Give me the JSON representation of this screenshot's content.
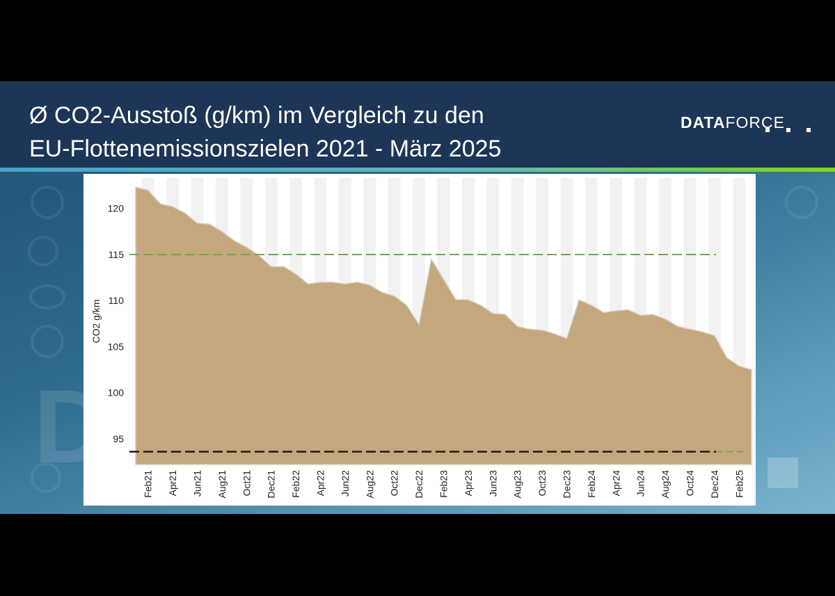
{
  "header": {
    "title_line1": "Ø CO2-Ausstoß (g/km) im Vergleich zu den",
    "title_line2": "EU-Flottenemissionszielen 2021 - März 2025",
    "logo_bold": "DATA",
    "logo_light": "FORCE"
  },
  "colors": {
    "header_bg": "#1d3557",
    "area_fill": "#c4a77d",
    "target_2021": "#6aad4d",
    "target_2025": "#1a1a1a",
    "column_band": "#f2f2f2"
  },
  "chart_data": {
    "type": "area",
    "title": "",
    "xlabel": "",
    "ylabel": "CO2 g/km",
    "ylim": [
      92.2,
      123.3
    ],
    "y_ticks": [
      95,
      100,
      105,
      110,
      115,
      120
    ],
    "x_tick_labels": [
      "Feb21",
      "Apr21",
      "Jun21",
      "Aug21",
      "Oct21",
      "Dec21",
      "Feb22",
      "Apr22",
      "Jun22",
      "Aug22",
      "Oct22",
      "Dec22",
      "Feb23",
      "Apr23",
      "Jun23",
      "Aug23",
      "Oct23",
      "Dec23",
      "Feb24",
      "Apr24",
      "Jun24",
      "Aug24",
      "Oct24",
      "Dec24",
      "Feb25"
    ],
    "x": [
      "Jan21",
      "Feb21",
      "Mar21",
      "Apr21",
      "May21",
      "Jun21",
      "Jul21",
      "Aug21",
      "Sep21",
      "Oct21",
      "Nov21",
      "Dec21",
      "Jan22",
      "Feb22",
      "Mar22",
      "Apr22",
      "May22",
      "Jun22",
      "Jul22",
      "Aug22",
      "Sep22",
      "Oct22",
      "Nov22",
      "Dec22",
      "Jan23",
      "Feb23",
      "Mar23",
      "Apr23",
      "May23",
      "Jun23",
      "Jul23",
      "Aug23",
      "Sep23",
      "Oct23",
      "Nov23",
      "Dec23",
      "Jan24",
      "Feb24",
      "Mar24",
      "Apr24",
      "May24",
      "Jun24",
      "Jul24",
      "Aug24",
      "Sep24",
      "Oct24",
      "Nov24",
      "Dec24",
      "Jan25",
      "Feb25",
      "Mar25"
    ],
    "series": [
      {
        "values": [
          122.3,
          122.0,
          120.5,
          120.2,
          119.5,
          118.4,
          118.3,
          117.5,
          116.5,
          115.8,
          114.9,
          113.7,
          113.7,
          112.9,
          111.8,
          112.0,
          112.0,
          111.8,
          112.0,
          111.7,
          110.9,
          110.5,
          109.5,
          107.4,
          114.5,
          112.3,
          110.1,
          110.1,
          109.5,
          108.6,
          108.5,
          107.2,
          106.9,
          106.8,
          106.4,
          105.9,
          110.1,
          109.5,
          108.7,
          108.9,
          109.0,
          108.4,
          108.5,
          108.0,
          107.2,
          106.9,
          106.6,
          106.2,
          103.8,
          102.9,
          102.5
        ]
      }
    ],
    "reference_lines": [
      {
        "y": 115,
        "style": "dashed",
        "color": "#6aad4d"
      },
      {
        "y": 93.6,
        "style": "dashed",
        "color": "#1a1a1a",
        "until": "Dec24",
        "continues_after_in": "#6aad4d"
      }
    ],
    "grid": false,
    "legend": "none"
  }
}
